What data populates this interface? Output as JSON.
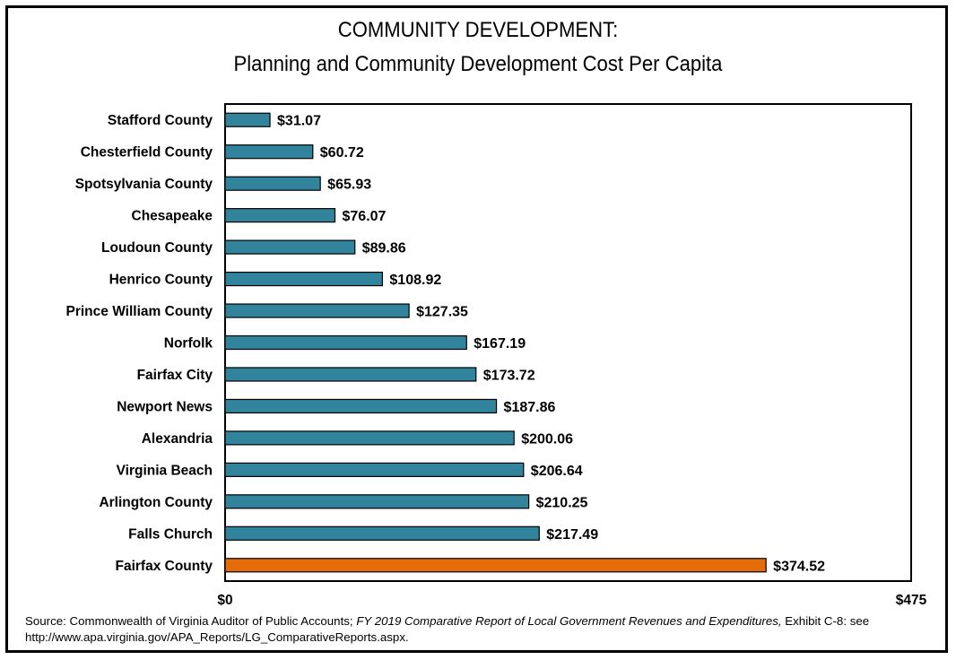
{
  "title_line1": "COMMUNITY DEVELOPMENT:",
  "title_line2": "Planning and Community Development Cost Per Capita",
  "source": {
    "prefix": "Source: Commonwealth of Virginia Auditor of Public Accounts; ",
    "italic": "FY 2019 Comparative Report of Local Government Revenues and Expenditures,",
    "suffix": " Exhibit C-8: see http://www.apa.virginia.gov/APA_Reports/LG_ComparativeReports.aspx."
  },
  "colors": {
    "bar": "#31849b",
    "highlight": "#e46c0a",
    "outline": "#000000"
  },
  "chart_data": {
    "type": "bar",
    "orientation": "horizontal",
    "title": "COMMUNITY DEVELOPMENT: Planning and Community Development Cost Per Capita",
    "categories": [
      "Stafford County",
      "Chesterfield County",
      "Spotsylvania County",
      "Chesapeake",
      "Loudoun County",
      "Henrico County",
      "Prince William County",
      "Norfolk",
      "Fairfax City",
      "Newport News",
      "Alexandria",
      "Virginia Beach",
      "Arlington County",
      "Falls Church",
      "Fairfax County"
    ],
    "values": [
      31.07,
      60.72,
      65.93,
      76.07,
      89.86,
      108.92,
      127.35,
      167.19,
      173.72,
      187.86,
      200.06,
      206.64,
      210.25,
      217.49,
      374.52
    ],
    "labels": [
      "$31.07",
      "$60.72",
      "$65.93",
      "$76.07",
      "$89.86",
      "$108.92",
      "$127.35",
      "$167.19",
      "$173.72",
      "$187.86",
      "$200.06",
      "$206.64",
      "$210.25",
      "$217.49",
      "$374.52"
    ],
    "highlight_category": "Fairfax County",
    "xlim": [
      0,
      475
    ],
    "xticks": [
      "$0",
      "$475"
    ],
    "grid": false
  }
}
